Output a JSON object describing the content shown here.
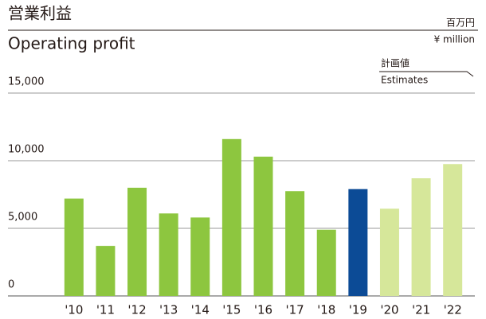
{
  "chart_data": {
    "type": "bar",
    "title": "営業利益",
    "subtitle": "Operating profit",
    "unit_label": "百万円",
    "unit_label_en": "¥ million",
    "legend_label": "計画値",
    "legend_label_en": "Estimates",
    "categories": [
      "'10",
      "'11",
      "'12",
      "'13",
      "'14",
      "'15",
      "'16",
      "'17",
      "'18",
      "'19",
      "'20",
      "'21",
      "'22"
    ],
    "values": [
      7200,
      3700,
      8000,
      6100,
      5800,
      11600,
      10300,
      7750,
      4900,
      7900,
      6450,
      8700,
      9750
    ],
    "colors": [
      "#8dc63f",
      "#8dc63f",
      "#8dc63f",
      "#8dc63f",
      "#8dc63f",
      "#8dc63f",
      "#8dc63f",
      "#8dc63f",
      "#8dc63f",
      "#0c4b96",
      "#d6e79a",
      "#d6e79a",
      "#d6e79a"
    ],
    "ylim": [
      0,
      15000
    ],
    "yticks": [
      0,
      {
        "value": 5000,
        "label": "5,000"
      },
      {
        "value": 10000,
        "label": "10,000"
      },
      {
        "value": 15000,
        "label": "15,000"
      }
    ],
    "grid": true
  }
}
